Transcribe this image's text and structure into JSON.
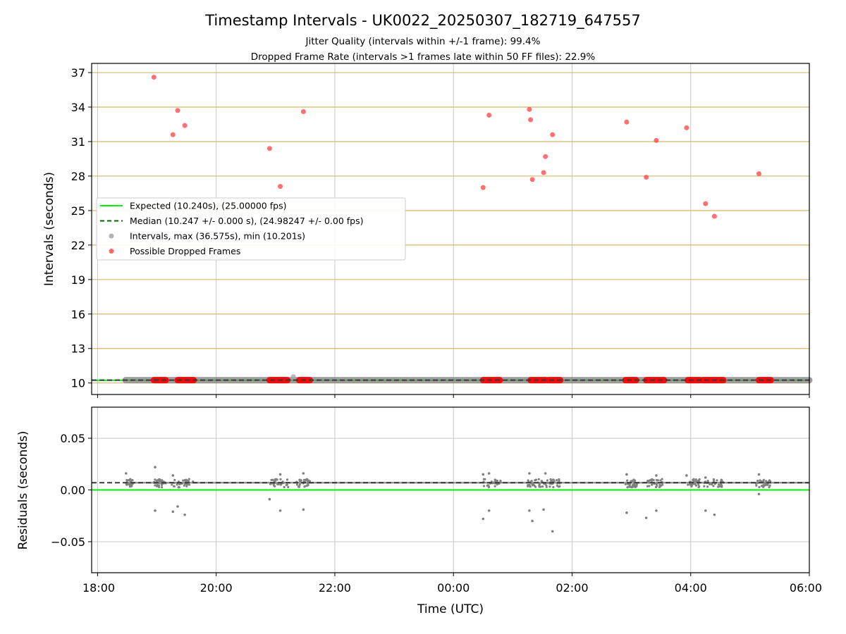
{
  "chart_data": [
    {
      "type": "scatter",
      "title": "Timestamp Intervals - UK0022_20250307_182719_647557",
      "subtitles": [
        "Jitter Quality (intervals within +/-1 frame): 99.4%",
        "Dropped Frame Rate (intervals >1 frames late within 50 FF files): 22.9%"
      ],
      "ylabel": "Intervals (seconds)",
      "xlabel": "",
      "xlim_hours": [
        17.9,
        30.0
      ],
      "ylim": [
        9.0,
        37.8
      ],
      "yticks": [
        10,
        13,
        16,
        19,
        22,
        25,
        28,
        31,
        34,
        37
      ],
      "ytick_labels": [
        "10",
        "13",
        "16",
        "19",
        "22",
        "25",
        "28",
        "31",
        "34",
        "37"
      ],
      "xticks_hours": [
        18,
        20,
        22,
        24,
        26,
        28,
        30
      ],
      "grid": true,
      "legend_placement": "center-left",
      "legend": [
        {
          "label": "Expected (10.240s), (25.00000 fps)",
          "kind": "line",
          "color": "#00ee00"
        },
        {
          "label": "Median (10.247 +/- 0.000 s), (24.98247 +/- 0.00 fps)",
          "kind": "dashed",
          "color": "#006400"
        },
        {
          "label": "Intervals, max (36.575s), min (10.201s)",
          "kind": "dot",
          "color": "#a0a0a0"
        },
        {
          "label": "Possible Dropped Frames",
          "kind": "dot",
          "color": "#ff4040"
        }
      ],
      "expected_interval": 10.24,
      "median_interval": 10.247,
      "series": [
        {
          "name": "Intervals, max (36.575s), min (10.201s)",
          "color": "#808080",
          "segments_hours": [
            [
              18.47,
              30.0
            ]
          ],
          "typical_value": 10.247,
          "outliers": [
            {
              "x": 21.3,
              "y": 10.55
            }
          ]
        },
        {
          "name": "Possible Dropped Frames",
          "color": "#ff0000",
          "baseline_runs_hours": [
            [
              18.95,
              19.15
            ],
            [
              19.35,
              19.62
            ],
            [
              20.9,
              21.2
            ],
            [
              21.4,
              21.58
            ],
            [
              24.5,
              24.78
            ],
            [
              25.3,
              25.55
            ],
            [
              25.6,
              25.8
            ],
            [
              26.9,
              27.08
            ],
            [
              27.25,
              27.55
            ],
            [
              27.95,
              28.15
            ],
            [
              28.2,
              28.55
            ],
            [
              29.15,
              29.35
            ]
          ],
          "points": [
            {
              "x": 18.95,
              "y": 36.6
            },
            {
              "x": 19.27,
              "y": 31.6
            },
            {
              "x": 19.35,
              "y": 33.7
            },
            {
              "x": 19.47,
              "y": 32.4
            },
            {
              "x": 20.9,
              "y": 30.4
            },
            {
              "x": 21.08,
              "y": 27.1
            },
            {
              "x": 21.47,
              "y": 33.6
            },
            {
              "x": 24.5,
              "y": 27.0
            },
            {
              "x": 24.6,
              "y": 33.3
            },
            {
              "x": 25.28,
              "y": 33.8
            },
            {
              "x": 25.3,
              "y": 32.9
            },
            {
              "x": 25.33,
              "y": 27.7
            },
            {
              "x": 25.52,
              "y": 28.3
            },
            {
              "x": 25.55,
              "y": 29.7
            },
            {
              "x": 25.67,
              "y": 31.6
            },
            {
              "x": 26.92,
              "y": 32.7
            },
            {
              "x": 27.25,
              "y": 27.9
            },
            {
              "x": 27.42,
              "y": 31.1
            },
            {
              "x": 27.93,
              "y": 32.2
            },
            {
              "x": 28.25,
              "y": 25.6
            },
            {
              "x": 28.4,
              "y": 24.5
            },
            {
              "x": 29.15,
              "y": 28.2
            }
          ]
        }
      ]
    },
    {
      "type": "scatter",
      "title": "",
      "ylabel": "Residuals (seconds)",
      "xlabel": "Time (UTC)",
      "xlim_hours": [
        17.9,
        30.0
      ],
      "ylim": [
        -0.08,
        0.08
      ],
      "yticks": [
        -0.05,
        0.0,
        0.05
      ],
      "ytick_labels": [
        "−0.05",
        "0.00",
        "0.05"
      ],
      "xticks_hours": [
        18,
        20,
        22,
        24,
        26,
        28,
        30
      ],
      "xtick_labels": [
        "18:00",
        "20:00",
        "22:00",
        "00:00",
        "02:00",
        "04:00",
        "06:00"
      ],
      "grid": true,
      "expected_residual": 0.0,
      "median_residual": 0.007,
      "series": [
        {
          "name": "Residuals",
          "color": "#808080",
          "clusters_hours": [
            [
              18.47,
              18.6
            ],
            [
              18.95,
              19.15
            ],
            [
              19.25,
              19.62
            ],
            [
              20.9,
              21.22
            ],
            [
              21.35,
              21.6
            ],
            [
              24.5,
              24.8
            ],
            [
              25.25,
              25.55
            ],
            [
              25.55,
              25.8
            ],
            [
              26.9,
              27.1
            ],
            [
              27.25,
              27.55
            ],
            [
              27.95,
              28.15
            ],
            [
              28.2,
              28.55
            ],
            [
              29.1,
              29.35
            ]
          ],
          "outliers": [
            {
              "x": 18.48,
              "y": 0.016
            },
            {
              "x": 18.97,
              "y": 0.022
            },
            {
              "x": 18.97,
              "y": -0.02
            },
            {
              "x": 19.27,
              "y": -0.021
            },
            {
              "x": 19.35,
              "y": -0.016
            },
            {
              "x": 19.47,
              "y": -0.024
            },
            {
              "x": 19.27,
              "y": 0.014
            },
            {
              "x": 20.9,
              "y": -0.009
            },
            {
              "x": 21.08,
              "y": -0.02
            },
            {
              "x": 21.08,
              "y": 0.015
            },
            {
              "x": 21.47,
              "y": -0.019
            },
            {
              "x": 21.47,
              "y": 0.016
            },
            {
              "x": 24.5,
              "y": -0.028
            },
            {
              "x": 24.6,
              "y": -0.02
            },
            {
              "x": 24.6,
              "y": 0.016
            },
            {
              "x": 24.5,
              "y": 0.015
            },
            {
              "x": 25.28,
              "y": -0.02
            },
            {
              "x": 25.33,
              "y": -0.03
            },
            {
              "x": 25.52,
              "y": -0.019
            },
            {
              "x": 25.67,
              "y": -0.04
            },
            {
              "x": 25.55,
              "y": 0.016
            },
            {
              "x": 25.28,
              "y": 0.016
            },
            {
              "x": 26.92,
              "y": -0.022
            },
            {
              "x": 26.92,
              "y": 0.015
            },
            {
              "x": 27.25,
              "y": -0.027
            },
            {
              "x": 27.42,
              "y": -0.02
            },
            {
              "x": 27.42,
              "y": 0.014
            },
            {
              "x": 27.93,
              "y": 0.014
            },
            {
              "x": 28.25,
              "y": -0.02
            },
            {
              "x": 28.4,
              "y": -0.024
            },
            {
              "x": 28.25,
              "y": 0.012
            },
            {
              "x": 29.15,
              "y": 0.015
            },
            {
              "x": 29.15,
              "y": -0.004
            }
          ]
        }
      ]
    }
  ],
  "colors": {
    "expected": "#00ee00",
    "median": "#006400",
    "interval": "#808080",
    "dropped": "#ff0000",
    "hgrid_top": "#d4b96a",
    "grid": "#c8c8c8"
  }
}
